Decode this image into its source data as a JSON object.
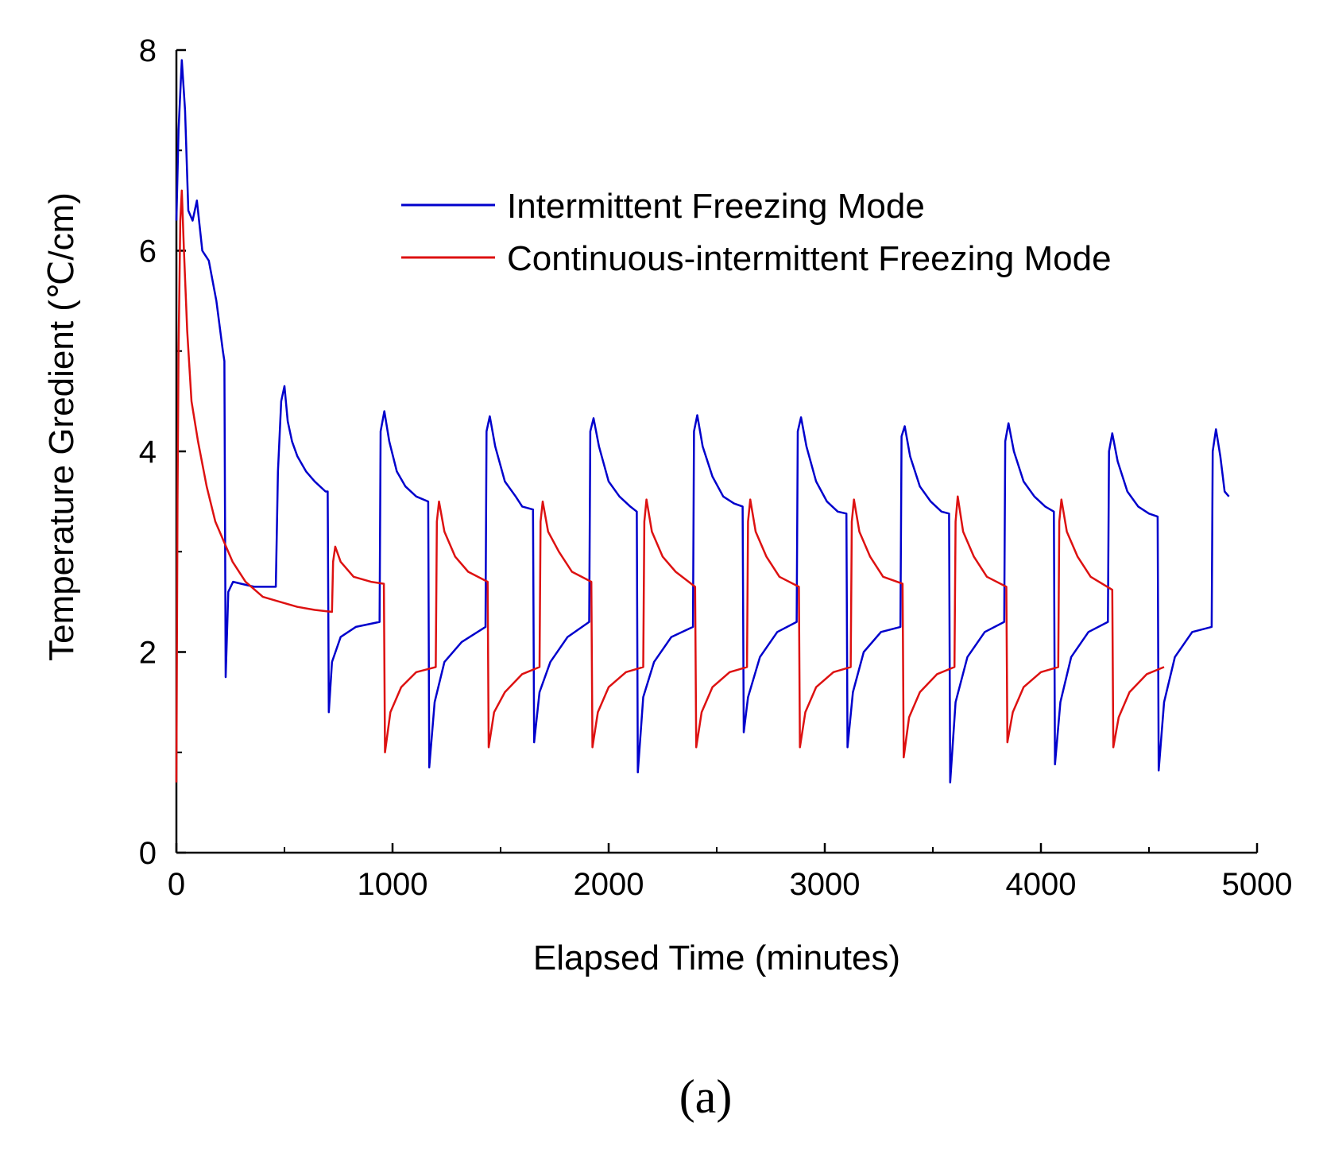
{
  "chart_data": {
    "type": "line",
    "panel_label": "(a)",
    "xlabel": "Elapsed Time (minutes)",
    "ylabel": "Temperature Gredient (℃/cm)",
    "xlim": [
      0,
      5000
    ],
    "ylim": [
      0,
      8
    ],
    "x_major_ticks": [
      0,
      1000,
      2000,
      3000,
      4000,
      5000
    ],
    "x_tick_labels": [
      "0",
      "1000",
      "2000",
      "3000",
      "4000",
      "5000"
    ],
    "x_minor_ticks": [
      500,
      1500,
      2500,
      3500,
      4500
    ],
    "y_major_ticks": [
      0,
      2,
      4,
      6,
      8
    ],
    "y_tick_labels": [
      "0",
      "2",
      "4",
      "6",
      "8"
    ],
    "y_minor_ticks": [
      1,
      3,
      5,
      7
    ],
    "grid": false,
    "legend_position": "top-right",
    "series": [
      {
        "name": "Intermittent Freezing Mode",
        "color": "#0000cc",
        "points": [
          [
            0,
            6.3
          ],
          [
            10,
            7.2
          ],
          [
            25,
            7.9
          ],
          [
            40,
            7.4
          ],
          [
            55,
            6.4
          ],
          [
            75,
            6.3
          ],
          [
            95,
            6.5
          ],
          [
            120,
            6.0
          ],
          [
            150,
            5.9
          ],
          [
            185,
            5.5
          ],
          [
            215,
            5.0
          ],
          [
            222,
            4.9
          ],
          [
            228,
            1.75
          ],
          [
            240,
            2.6
          ],
          [
            262,
            2.7
          ],
          [
            300,
            2.68
          ],
          [
            360,
            2.65
          ],
          [
            400,
            2.65
          ],
          [
            460,
            2.65
          ],
          [
            470,
            3.8
          ],
          [
            485,
            4.5
          ],
          [
            500,
            4.65
          ],
          [
            515,
            4.3
          ],
          [
            535,
            4.1
          ],
          [
            560,
            3.95
          ],
          [
            600,
            3.8
          ],
          [
            640,
            3.7
          ],
          [
            690,
            3.6
          ],
          [
            700,
            3.6
          ],
          [
            705,
            1.4
          ],
          [
            720,
            1.9
          ],
          [
            760,
            2.15
          ],
          [
            830,
            2.25
          ],
          [
            940,
            2.3
          ],
          [
            945,
            4.2
          ],
          [
            962,
            4.4
          ],
          [
            985,
            4.1
          ],
          [
            1020,
            3.8
          ],
          [
            1060,
            3.65
          ],
          [
            1110,
            3.55
          ],
          [
            1165,
            3.5
          ],
          [
            1170,
            0.85
          ],
          [
            1195,
            1.5
          ],
          [
            1240,
            1.9
          ],
          [
            1320,
            2.1
          ],
          [
            1430,
            2.25
          ],
          [
            1435,
            4.2
          ],
          [
            1450,
            4.35
          ],
          [
            1475,
            4.05
          ],
          [
            1520,
            3.7
          ],
          [
            1570,
            3.55
          ],
          [
            1600,
            3.45
          ],
          [
            1650,
            3.42
          ],
          [
            1655,
            1.1
          ],
          [
            1680,
            1.6
          ],
          [
            1730,
            1.9
          ],
          [
            1810,
            2.15
          ],
          [
            1910,
            2.3
          ],
          [
            1915,
            4.2
          ],
          [
            1930,
            4.33
          ],
          [
            1955,
            4.05
          ],
          [
            2000,
            3.7
          ],
          [
            2050,
            3.55
          ],
          [
            2100,
            3.45
          ],
          [
            2130,
            3.4
          ],
          [
            2135,
            0.8
          ],
          [
            2160,
            1.55
          ],
          [
            2210,
            1.9
          ],
          [
            2290,
            2.15
          ],
          [
            2390,
            2.25
          ],
          [
            2395,
            4.2
          ],
          [
            2410,
            4.36
          ],
          [
            2435,
            4.05
          ],
          [
            2480,
            3.75
          ],
          [
            2530,
            3.55
          ],
          [
            2580,
            3.48
          ],
          [
            2620,
            3.45
          ],
          [
            2625,
            1.2
          ],
          [
            2645,
            1.55
          ],
          [
            2700,
            1.95
          ],
          [
            2780,
            2.2
          ],
          [
            2870,
            2.3
          ],
          [
            2875,
            4.2
          ],
          [
            2890,
            4.34
          ],
          [
            2915,
            4.05
          ],
          [
            2960,
            3.7
          ],
          [
            3010,
            3.5
          ],
          [
            3060,
            3.4
          ],
          [
            3100,
            3.38
          ],
          [
            3105,
            1.05
          ],
          [
            3130,
            1.6
          ],
          [
            3180,
            2.0
          ],
          [
            3260,
            2.2
          ],
          [
            3350,
            2.25
          ],
          [
            3355,
            4.15
          ],
          [
            3370,
            4.25
          ],
          [
            3395,
            3.95
          ],
          [
            3440,
            3.65
          ],
          [
            3490,
            3.5
          ],
          [
            3540,
            3.4
          ],
          [
            3575,
            3.38
          ],
          [
            3580,
            0.7
          ],
          [
            3605,
            1.5
          ],
          [
            3660,
            1.95
          ],
          [
            3740,
            2.2
          ],
          [
            3830,
            2.3
          ],
          [
            3835,
            4.1
          ],
          [
            3850,
            4.28
          ],
          [
            3875,
            4.0
          ],
          [
            3920,
            3.7
          ],
          [
            3970,
            3.55
          ],
          [
            4020,
            3.45
          ],
          [
            4060,
            3.4
          ],
          [
            4065,
            0.88
          ],
          [
            4090,
            1.5
          ],
          [
            4140,
            1.95
          ],
          [
            4220,
            2.2
          ],
          [
            4310,
            2.3
          ],
          [
            4315,
            4.0
          ],
          [
            4330,
            4.18
          ],
          [
            4355,
            3.9
          ],
          [
            4400,
            3.6
          ],
          [
            4450,
            3.45
          ],
          [
            4500,
            3.38
          ],
          [
            4540,
            3.35
          ],
          [
            4545,
            0.82
          ],
          [
            4570,
            1.5
          ],
          [
            4620,
            1.95
          ],
          [
            4700,
            2.2
          ],
          [
            4790,
            2.25
          ],
          [
            4795,
            4.0
          ],
          [
            4810,
            4.22
          ],
          [
            4830,
            3.95
          ],
          [
            4850,
            3.6
          ],
          [
            4870,
            3.55
          ]
        ]
      },
      {
        "name": "Continuous-intermittent Freezing Mode",
        "color": "#dd1111",
        "points": [
          [
            0,
            0.7
          ],
          [
            5,
            3.5
          ],
          [
            10,
            5.0
          ],
          [
            18,
            6.3
          ],
          [
            25,
            6.6
          ],
          [
            35,
            6.0
          ],
          [
            50,
            5.2
          ],
          [
            70,
            4.5
          ],
          [
            100,
            4.1
          ],
          [
            140,
            3.65
          ],
          [
            180,
            3.3
          ],
          [
            220,
            3.1
          ],
          [
            260,
            2.9
          ],
          [
            320,
            2.7
          ],
          [
            400,
            2.55
          ],
          [
            480,
            2.5
          ],
          [
            560,
            2.45
          ],
          [
            640,
            2.42
          ],
          [
            720,
            2.4
          ],
          [
            725,
            2.9
          ],
          [
            735,
            3.05
          ],
          [
            760,
            2.9
          ],
          [
            820,
            2.75
          ],
          [
            900,
            2.7
          ],
          [
            960,
            2.68
          ],
          [
            965,
            1.0
          ],
          [
            990,
            1.4
          ],
          [
            1040,
            1.65
          ],
          [
            1110,
            1.8
          ],
          [
            1200,
            1.85
          ],
          [
            1205,
            3.3
          ],
          [
            1215,
            3.5
          ],
          [
            1240,
            3.2
          ],
          [
            1290,
            2.95
          ],
          [
            1350,
            2.8
          ],
          [
            1440,
            2.7
          ],
          [
            1445,
            1.05
          ],
          [
            1470,
            1.4
          ],
          [
            1520,
            1.6
          ],
          [
            1600,
            1.78
          ],
          [
            1680,
            1.85
          ],
          [
            1685,
            3.3
          ],
          [
            1695,
            3.5
          ],
          [
            1720,
            3.2
          ],
          [
            1770,
            3.0
          ],
          [
            1830,
            2.8
          ],
          [
            1920,
            2.7
          ],
          [
            1925,
            1.05
          ],
          [
            1950,
            1.4
          ],
          [
            2000,
            1.65
          ],
          [
            2080,
            1.8
          ],
          [
            2160,
            1.85
          ],
          [
            2165,
            3.3
          ],
          [
            2175,
            3.52
          ],
          [
            2200,
            3.2
          ],
          [
            2250,
            2.95
          ],
          [
            2310,
            2.8
          ],
          [
            2400,
            2.65
          ],
          [
            2405,
            1.05
          ],
          [
            2430,
            1.4
          ],
          [
            2480,
            1.65
          ],
          [
            2560,
            1.8
          ],
          [
            2640,
            1.85
          ],
          [
            2645,
            3.3
          ],
          [
            2655,
            3.52
          ],
          [
            2680,
            3.2
          ],
          [
            2730,
            2.95
          ],
          [
            2790,
            2.75
          ],
          [
            2880,
            2.65
          ],
          [
            2885,
            1.05
          ],
          [
            2910,
            1.4
          ],
          [
            2960,
            1.65
          ],
          [
            3040,
            1.8
          ],
          [
            3120,
            1.85
          ],
          [
            3125,
            3.3
          ],
          [
            3135,
            3.52
          ],
          [
            3160,
            3.2
          ],
          [
            3210,
            2.95
          ],
          [
            3270,
            2.75
          ],
          [
            3360,
            2.68
          ],
          [
            3365,
            0.95
          ],
          [
            3390,
            1.35
          ],
          [
            3440,
            1.6
          ],
          [
            3520,
            1.78
          ],
          [
            3600,
            1.85
          ],
          [
            3605,
            3.3
          ],
          [
            3615,
            3.55
          ],
          [
            3640,
            3.2
          ],
          [
            3690,
            2.95
          ],
          [
            3750,
            2.75
          ],
          [
            3840,
            2.65
          ],
          [
            3845,
            1.1
          ],
          [
            3870,
            1.4
          ],
          [
            3920,
            1.65
          ],
          [
            4000,
            1.8
          ],
          [
            4080,
            1.85
          ],
          [
            4085,
            3.3
          ],
          [
            4095,
            3.52
          ],
          [
            4120,
            3.2
          ],
          [
            4170,
            2.95
          ],
          [
            4230,
            2.75
          ],
          [
            4330,
            2.62
          ],
          [
            4335,
            1.05
          ],
          [
            4360,
            1.35
          ],
          [
            4410,
            1.6
          ],
          [
            4490,
            1.78
          ],
          [
            4570,
            1.85
          ]
        ]
      }
    ]
  }
}
